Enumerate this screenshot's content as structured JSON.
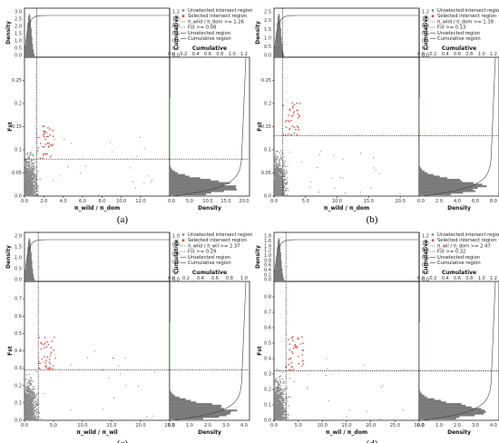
{
  "colors": {
    "unselected": "#8a8a8a",
    "selected": "#e04848",
    "cumulative_sel": "#3cb34a",
    "hist": "#7a7a7a",
    "axis": "#000000"
  },
  "chart_data": [
    {
      "type": "scatter",
      "panel_label": "(a)",
      "xlabel": "π_wild / π_dom",
      "ylabel": "Fst",
      "xlim": [
        0,
        15
      ],
      "ylim": [
        0,
        0.3
      ],
      "xticks": [
        "0.0",
        "2.0",
        "4.0",
        "6.0",
        "8.0",
        "10.0",
        "12.0"
      ],
      "yticks": [
        "0.0",
        "0.05",
        "0.1",
        "0.15",
        "0.2",
        "0.25"
      ],
      "x_threshold": 1.26,
      "y_threshold": 0.08,
      "top_density_ticks": [
        "0.0",
        "0.5",
        "1.0",
        "1.5",
        "2.0",
        "2.5",
        "3.0"
      ],
      "top_cumulative_ticks": [
        "0.0",
        "0.2",
        "0.4",
        "0.6",
        "0.8",
        "1.0",
        "1.2"
      ],
      "right_density_ticks": [
        "0.0",
        "5.0",
        "10.0",
        "15.0",
        "20.0"
      ],
      "right_cumulative_ticks": [
        "0.0",
        "0.2",
        "0.4",
        "0.6",
        "0.8",
        "1.0",
        "1.2"
      ],
      "legend": [
        "Unselected intersect region",
        "Selected intersect region",
        "π_wild / π_dom >= 1.26",
        "Fst >= 0.08",
        "Unselected region",
        "Cumulative region"
      ],
      "density_label": "Density",
      "cumulative_label": "Cumulative"
    },
    {
      "type": "scatter",
      "panel_label": "(b)",
      "xlabel": "π_wild / π_dom",
      "ylabel": "Fst",
      "xlim": [
        0,
        23
      ],
      "ylim": [
        0,
        0.3
      ],
      "xticks": [
        "0.0",
        "5.0",
        "10.0",
        "15.0",
        "20.0"
      ],
      "yticks": [
        "0.0",
        "0.05",
        "0.1",
        "0.15",
        "0.2",
        "0.25"
      ],
      "x_threshold": 1.39,
      "y_threshold": 0.13,
      "top_density_ticks": [
        "0.0",
        "0.5",
        "1.0",
        "1.5",
        "2.0",
        "2.5"
      ],
      "top_cumulative_ticks": [
        "0.0",
        "0.2",
        "0.4",
        "0.6",
        "0.8",
        "1.0",
        "1.2"
      ],
      "right_density_ticks": [
        "0.0",
        "2.0",
        "4.0",
        "6.0",
        "8.0"
      ],
      "right_cumulative_ticks": [
        "0.0",
        "0.2",
        "0.4",
        "0.6",
        "0.8",
        "1.0",
        "1.2"
      ],
      "legend": [
        "Unselected intersect region",
        "Selected intersect region",
        "π_wild / π_dom >= 1.39",
        "Fst >= 0.13",
        "Unselected region",
        "Cumulative region"
      ],
      "density_label": "Density",
      "cumulative_label": "Cumulative"
    },
    {
      "type": "scatter",
      "panel_label": "(c)",
      "xlabel": "π_wild / π_wil",
      "ylabel": "Fst",
      "xlim": [
        0,
        25
      ],
      "ylim": [
        0,
        0.8
      ],
      "xticks": [
        "0.0",
        "5.0",
        "10.0",
        "15.0",
        "20.0",
        "25.0"
      ],
      "yticks": [
        "0.0",
        "0.1",
        "0.2",
        "0.3",
        "0.4",
        "0.5",
        "0.6",
        "0.7"
      ],
      "x_threshold": 2.37,
      "y_threshold": 0.29,
      "top_density_ticks": [
        "0.0",
        "0.5",
        "1.0",
        "1.5",
        "2.0"
      ],
      "top_cumulative_ticks": [
        "0.0",
        "0.2",
        "0.4",
        "0.6",
        "0.8",
        "1.0"
      ],
      "right_density_ticks": [
        "0.0",
        "1.0",
        "2.0",
        "3.0",
        "4.0"
      ],
      "right_cumulative_ticks": [
        "0.0",
        "0.2",
        "0.4",
        "0.6",
        "0.8",
        "1.0"
      ],
      "legend": [
        "Unselected intersect region",
        "Selected intersect region",
        "π_wild / π_wil >= 2.37",
        "Fst >= 0.29",
        "Unselected region",
        "Cumulative region"
      ],
      "density_label": "Density",
      "cumulative_label": "Cumulative"
    },
    {
      "type": "scatter",
      "panel_label": "(d)",
      "xlabel": "π_wil / π_dom",
      "ylabel": "Fst",
      "xlim": [
        0,
        30
      ],
      "ylim": [
        0,
        0.9
      ],
      "xticks": [
        "0.0",
        "5.0",
        "10.0",
        "15.0",
        "20.0",
        "25.0",
        "30.0"
      ],
      "yticks": [
        "0.0",
        "0.1",
        "0.2",
        "0.3",
        "0.4",
        "0.5",
        "0.6",
        "0.7",
        "0.8"
      ],
      "x_threshold": 2.47,
      "y_threshold": 0.32,
      "top_density_ticks": [
        "0.0",
        "0.2",
        "0.4",
        "0.6",
        "0.8",
        "1.0",
        "1.2",
        "1.4",
        "1.6",
        "1.8"
      ],
      "top_cumulative_ticks": [
        "0.0",
        "0.2",
        "0.4",
        "0.6",
        "0.8",
        "1.0",
        "1.2"
      ],
      "right_density_ticks": [
        "0.0",
        "1.0",
        "2.0",
        "3.0",
        "4.0"
      ],
      "right_cumulative_ticks": [
        "0.0",
        "0.2",
        "0.4",
        "0.6",
        "0.8",
        "1.0",
        "1.2"
      ],
      "legend": [
        "Unselected intersect region",
        "Selected intersect region",
        "π_wil / π_dom >= 2.47",
        "Fst >= 0.32",
        "Unselected region",
        "Cumulative region"
      ],
      "density_label": "Density",
      "cumulative_label": "Cumulative"
    }
  ]
}
